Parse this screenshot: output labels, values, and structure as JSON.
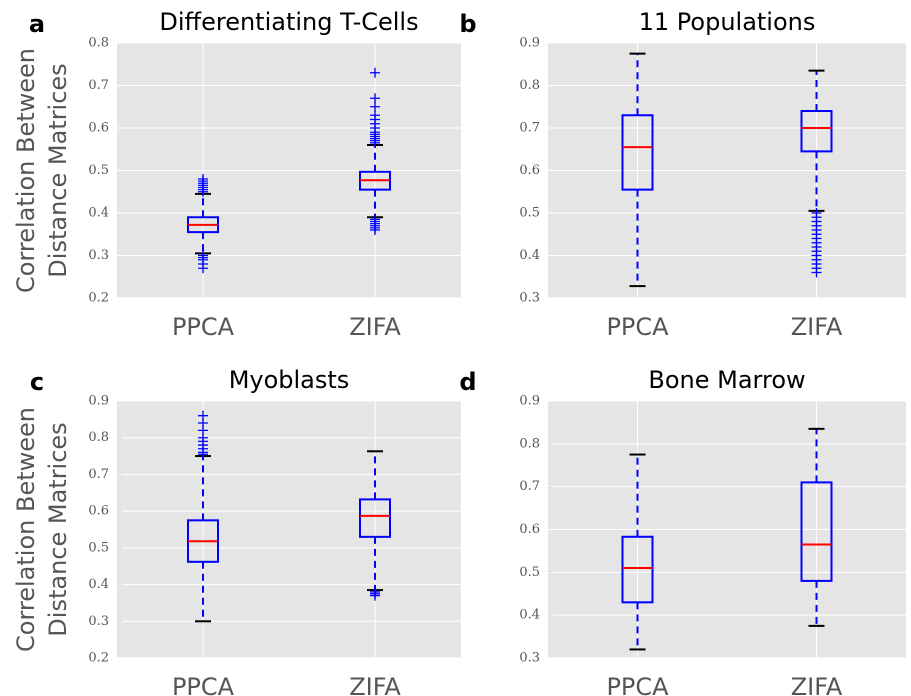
{
  "chart_data": [
    {
      "type": "box",
      "panel_label": "a",
      "title": "Differentiating T-Cells",
      "ylabel": [
        "Correlation Between",
        "Distance Matrices"
      ],
      "categories": [
        "PPCA",
        "ZIFA"
      ],
      "ylim": [
        0.2,
        0.8
      ],
      "yticks": [
        0.2,
        0.3,
        0.4,
        0.5,
        0.6,
        0.7,
        0.8
      ],
      "box_color": "#0000ff",
      "median_color": "#ff0000",
      "cap_color": "#000000",
      "background": "#e5e5e5",
      "grid": true,
      "boxes": [
        {
          "whislo": 0.305,
          "q1": 0.355,
          "med": 0.372,
          "q3": 0.39,
          "whishi": 0.445,
          "fliers": [
            0.45,
            0.455,
            0.46,
            0.465,
            0.47,
            0.475,
            0.48,
            0.3,
            0.295,
            0.29,
            0.28,
            0.27
          ]
        },
        {
          "whislo": 0.39,
          "q1": 0.455,
          "med": 0.477,
          "q3": 0.497,
          "whishi": 0.56,
          "fliers": [
            0.565,
            0.57,
            0.575,
            0.58,
            0.585,
            0.59,
            0.6,
            0.61,
            0.62,
            0.63,
            0.65,
            0.67,
            0.73,
            0.385,
            0.38,
            0.375,
            0.37,
            0.365,
            0.36
          ]
        }
      ]
    },
    {
      "type": "box",
      "panel_label": "b",
      "title": "11 Populations",
      "categories": [
        "PPCA",
        "ZIFA"
      ],
      "ylim": [
        0.3,
        0.9
      ],
      "yticks": [
        0.3,
        0.4,
        0.5,
        0.6,
        0.7,
        0.8,
        0.9
      ],
      "box_color": "#0000ff",
      "median_color": "#ff0000",
      "cap_color": "#000000",
      "background": "#e5e5e5",
      "grid": true,
      "boxes": [
        {
          "whislo": 0.328,
          "q1": 0.555,
          "med": 0.655,
          "q3": 0.73,
          "whishi": 0.875,
          "fliers": []
        },
        {
          "whislo": 0.505,
          "q1": 0.645,
          "med": 0.7,
          "q3": 0.74,
          "whishi": 0.835,
          "fliers": [
            0.36,
            0.37,
            0.38,
            0.39,
            0.4,
            0.41,
            0.42,
            0.43,
            0.44,
            0.45,
            0.46,
            0.47,
            0.48,
            0.49,
            0.5
          ]
        }
      ]
    },
    {
      "type": "box",
      "panel_label": "c",
      "title": "Myoblasts",
      "ylabel": [
        "Correlation Between",
        "Distance Matrices"
      ],
      "categories": [
        "PPCA",
        "ZIFA"
      ],
      "ylim": [
        0.2,
        0.9
      ],
      "yticks": [
        0.2,
        0.3,
        0.4,
        0.5,
        0.6,
        0.7,
        0.8,
        0.9
      ],
      "box_color": "#0000ff",
      "median_color": "#ff0000",
      "cap_color": "#000000",
      "background": "#e5e5e5",
      "grid": true,
      "boxes": [
        {
          "whislo": 0.3,
          "q1": 0.462,
          "med": 0.518,
          "q3": 0.575,
          "whishi": 0.75,
          "fliers": [
            0.755,
            0.76,
            0.77,
            0.78,
            0.79,
            0.8,
            0.82,
            0.84,
            0.86
          ]
        },
        {
          "whislo": 0.385,
          "q1": 0.53,
          "med": 0.587,
          "q3": 0.632,
          "whishi": 0.763,
          "fliers": [
            0.38,
            0.375,
            0.37
          ]
        }
      ]
    },
    {
      "type": "box",
      "panel_label": "d",
      "title": "Bone Marrow",
      "categories": [
        "PPCA",
        "ZIFA"
      ],
      "ylim": [
        0.3,
        0.9
      ],
      "yticks": [
        0.3,
        0.4,
        0.5,
        0.6,
        0.7,
        0.8,
        0.9
      ],
      "box_color": "#0000ff",
      "median_color": "#ff0000",
      "cap_color": "#000000",
      "background": "#e5e5e5",
      "grid": true,
      "boxes": [
        {
          "whislo": 0.32,
          "q1": 0.43,
          "med": 0.51,
          "q3": 0.583,
          "whishi": 0.775,
          "fliers": []
        },
        {
          "whislo": 0.375,
          "q1": 0.48,
          "med": 0.565,
          "q3": 0.71,
          "whishi": 0.835,
          "fliers": []
        }
      ]
    }
  ]
}
